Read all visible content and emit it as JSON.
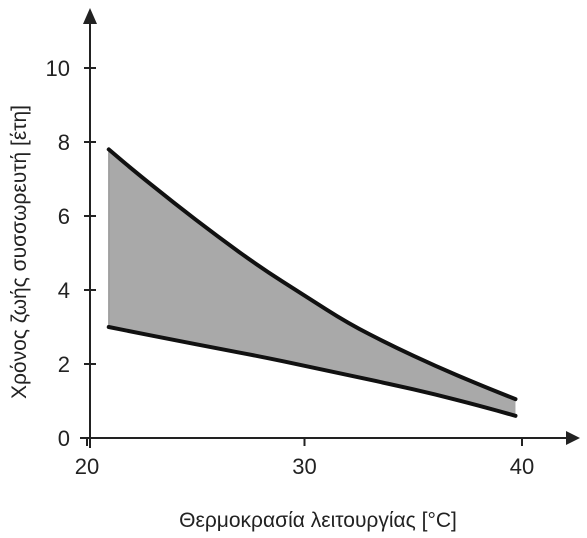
{
  "chart_data": {
    "type": "area",
    "xlabel": "Θερμοκρασία λειτουργίας [°C]",
    "ylabel": "Χρόνος ζωής συσσωρευτή [έτη]",
    "xlim": [
      19.5,
      42.5
    ],
    "ylim": [
      0,
      11.5
    ],
    "x_ticks": [
      20,
      30,
      40
    ],
    "y_ticks": [
      0,
      2,
      4,
      6,
      8,
      10
    ],
    "grid": false,
    "series": [
      {
        "x": [
          21,
          22,
          24,
          26,
          28,
          30,
          32,
          34,
          36,
          38,
          39.7
        ],
        "values": [
          7.8,
          7.3,
          6.35,
          5.45,
          4.6,
          3.85,
          3.1,
          2.5,
          1.95,
          1.45,
          1.05
        ]
      },
      {
        "x": [
          21,
          22,
          24,
          26,
          28,
          30,
          32,
          34,
          36,
          38,
          39.7
        ],
        "values": [
          3.0,
          2.88,
          2.65,
          2.42,
          2.2,
          1.95,
          1.7,
          1.45,
          1.18,
          0.88,
          0.6
        ]
      }
    ],
    "fill_between": true
  }
}
